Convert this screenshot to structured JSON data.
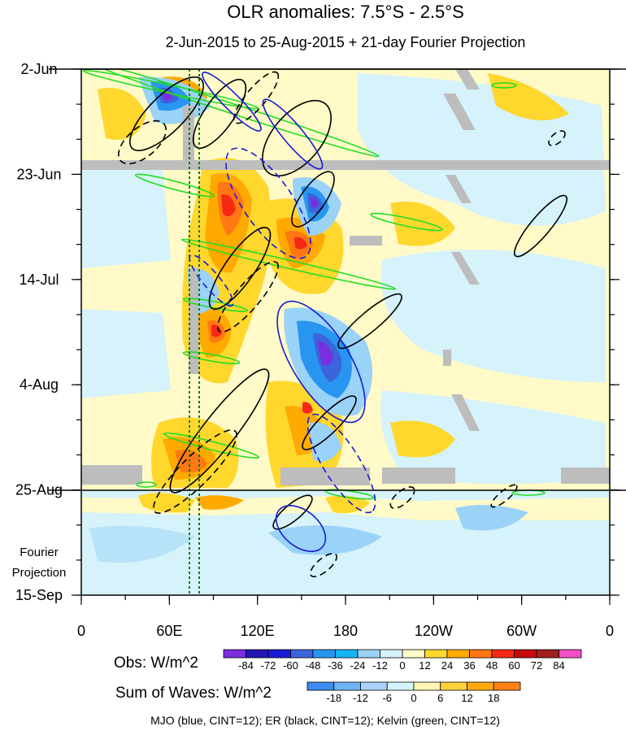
{
  "chart_data": {
    "type": "heatmap",
    "title": "OLR anomalies: 7.5°S - 2.5°S",
    "subtitle": "2-Jun-2015 to 25-Aug-2015 + 21-day Fourier Projection",
    "x_ticks": [
      "0",
      "60E",
      "120E",
      "180",
      "120W",
      "60W",
      "0"
    ],
    "y_ticks": [
      "2-Jun",
      "23-Jun",
      "14-Jul",
      "4-Aug",
      "25-Aug",
      "15-Sep"
    ],
    "projection_label": [
      "Fourier",
      "Projection"
    ],
    "obs_colorbar": {
      "label": "Obs: W/m^2",
      "levels": [
        "-84",
        "-72",
        "-60",
        "-48",
        "-36",
        "-24",
        "-12",
        "0",
        "12",
        "24",
        "36",
        "48",
        "60",
        "72",
        "84"
      ],
      "colors": [
        "#7b2de0",
        "#2214b4",
        "#1a1ad6",
        "#3c64dc",
        "#2896f0",
        "#14b4f5",
        "#9ad2f8",
        "#d6f2fa",
        "#fffac8",
        "#ffd72d",
        "#ffaa00",
        "#ff7814",
        "#f52814",
        "#c80a0a",
        "#a01e1e",
        "#f050c8"
      ]
    },
    "waves_colorbar": {
      "label": "Sum of Waves: W/m^2",
      "levels": [
        "-18",
        "-12",
        "-6",
        "0",
        "6",
        "12",
        "18"
      ],
      "colors": [
        "#3c8cf0",
        "#6eb4f5",
        "#aad2f8",
        "#d6f2fa",
        "#fff5b4",
        "#ffd23c",
        "#ffaa14",
        "#ff8214"
      ]
    },
    "footer": "MJO (blue, CINT=12); ER (black, CINT=12); Kelvin (green, CINT=12)",
    "colors": {
      "mjo": "#1a1ad6",
      "er": "#000000",
      "kelvin": "#22dd22",
      "missing": "#bdbdbd",
      "guide_line": "#117711"
    }
  }
}
